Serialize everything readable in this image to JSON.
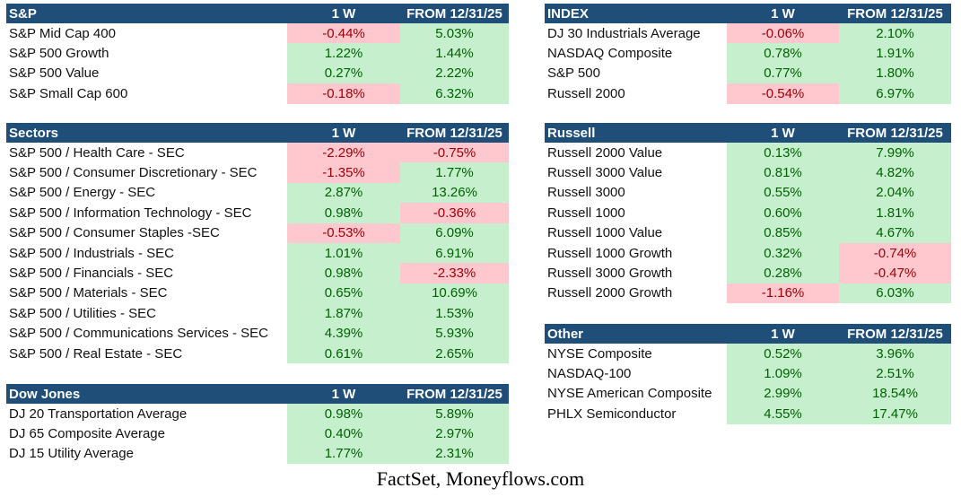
{
  "colors": {
    "header_bg": "#1f4e79",
    "positive_bg": "#c6efce",
    "positive_text": "#006100",
    "negative_bg": "#ffc7ce",
    "negative_text": "#9c0006"
  },
  "tables": [
    {
      "title": "S&P",
      "col1": "1 W",
      "col2": "FROM 12/31/25",
      "rows": [
        [
          "S&P Mid Cap 400",
          "-0.44%",
          "5.03%"
        ],
        [
          "S&P 500 Growth",
          "1.22%",
          "1.44%"
        ],
        [
          "S&P 500 Value",
          "0.27%",
          "2.22%"
        ],
        [
          "S&P Small Cap 600",
          "-0.18%",
          "6.32%"
        ]
      ]
    },
    {
      "title": "Sectors",
      "col1": "1 W",
      "col2": "FROM 12/31/25",
      "rows": [
        [
          "S&P 500 / Health Care - SEC",
          "-2.29%",
          "-0.75%"
        ],
        [
          "S&P 500 / Consumer Discretionary - SEC",
          "-1.35%",
          "1.77%"
        ],
        [
          "S&P 500 / Energy - SEC",
          "2.87%",
          "13.26%"
        ],
        [
          "S&P 500 / Information Technology - SEC",
          "0.98%",
          "-0.36%"
        ],
        [
          "S&P 500 / Consumer Staples -SEC",
          "-0.53%",
          "6.09%"
        ],
        [
          "S&P 500 / Industrials - SEC",
          "1.01%",
          "6.91%"
        ],
        [
          "S&P 500 / Financials - SEC",
          "0.98%",
          "-2.33%"
        ],
        [
          "S&P 500 / Materials - SEC",
          "0.65%",
          "10.69%"
        ],
        [
          "S&P 500 / Utilities - SEC",
          "1.87%",
          "1.53%"
        ],
        [
          "S&P 500 / Communications Services - SEC",
          "4.39%",
          "5.93%"
        ],
        [
          "S&P 500 / Real Estate - SEC",
          "0.61%",
          "2.65%"
        ]
      ]
    },
    {
      "title": "Dow Jones",
      "col1": "1 W",
      "col2": "FROM 12/31/25",
      "rows": [
        [
          "DJ 20 Transportation Average",
          "0.98%",
          "5.89%"
        ],
        [
          "DJ 65 Composite Average",
          "0.40%",
          "2.97%"
        ],
        [
          "DJ 15 Utility Average",
          "1.77%",
          "2.31%"
        ]
      ]
    },
    {
      "title": "INDEX",
      "col1": "1 W",
      "col2": "FROM 12/31/25",
      "rows": [
        [
          "DJ 30 Industrials Average",
          "-0.06%",
          "2.10%"
        ],
        [
          "NASDAQ Composite",
          "0.78%",
          "1.91%"
        ],
        [
          "S&P 500",
          "0.77%",
          "1.80%"
        ],
        [
          "Russell 2000",
          "-0.54%",
          "6.97%"
        ]
      ]
    },
    {
      "title": "Russell",
      "col1": "1 W",
      "col2": "FROM 12/31/25",
      "rows": [
        [
          "Russell 2000 Value",
          "0.13%",
          "7.99%"
        ],
        [
          "Russell 3000 Value",
          "0.81%",
          "4.82%"
        ],
        [
          "Russell 3000",
          "0.55%",
          "2.04%"
        ],
        [
          "Russell 1000",
          "0.60%",
          "1.81%"
        ],
        [
          "Russell 1000 Value",
          "0.85%",
          "4.67%"
        ],
        [
          "Russell 1000 Growth",
          "0.32%",
          "-0.74%"
        ],
        [
          "Russell 3000 Growth",
          "0.28%",
          "-0.47%"
        ],
        [
          "Russell 2000 Growth",
          "-1.16%",
          "6.03%"
        ]
      ]
    },
    {
      "title": "Other",
      "col1": "1 W",
      "col2": "FROM 12/31/25",
      "rows": [
        [
          "NYSE Composite",
          "0.52%",
          "3.96%"
        ],
        [
          "NASDAQ-100",
          "1.09%",
          "2.51%"
        ],
        [
          "NYSE American Composite",
          "2.99%",
          "18.54%"
        ],
        [
          "PHLX Semiconductor",
          "4.55%",
          "17.47%"
        ]
      ]
    }
  ],
  "source": "FactSet, Moneyflows.com"
}
